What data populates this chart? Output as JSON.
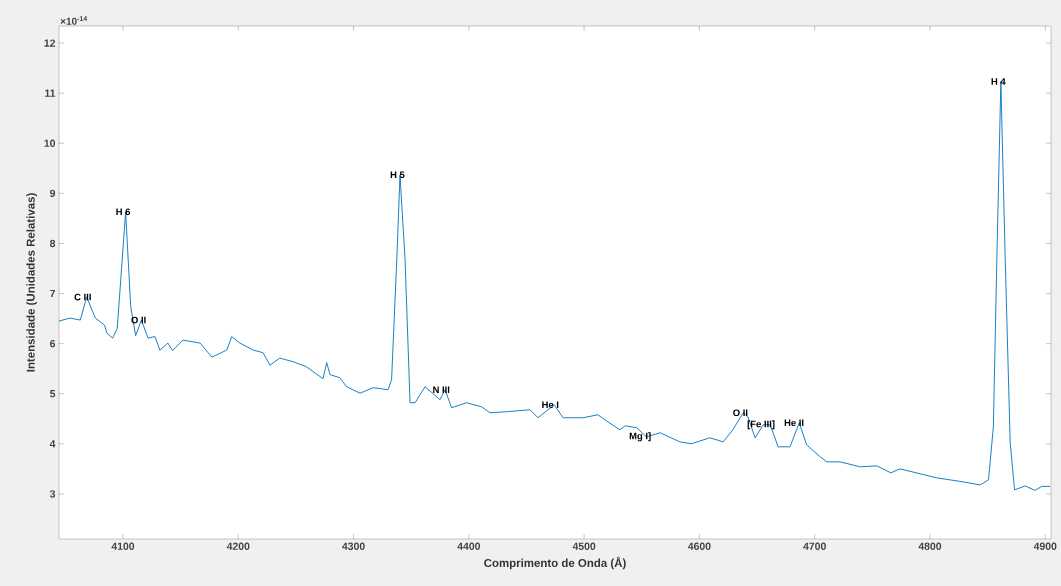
{
  "chart_data": {
    "type": "line",
    "xlabel": "Comprimento de Onda (Å)",
    "ylabel": "Intensidade (Unidades Relativas)",
    "xlim": [
      4044.5,
      4905
    ],
    "ylim": [
      2.1,
      12.34
    ],
    "xticks": [
      4100,
      4200,
      4300,
      4400,
      4500,
      4600,
      4700,
      4800,
      4900
    ],
    "yticks": [
      3,
      4,
      5,
      6,
      7,
      8,
      9,
      10,
      11,
      12
    ],
    "grid": false,
    "marker": "none",
    "line_style": "solid",
    "annotations": [
      "×10$^{-14}$",
      {
        "text": "C III",
        "x": 4068.5,
        "y": 6.93
      },
      {
        "text": "H 6",
        "x": 4102.3,
        "y": 8.63
      },
      {
        "text": "O II",
        "x": 4116,
        "y": 6.47
      },
      {
        "text": "H 5",
        "x": 4340.3,
        "y": 9.37
      },
      {
        "text": "N III",
        "x": 4379.4,
        "y": 5.08
      },
      {
        "text": "He I",
        "x": 4474,
        "y": 4.78
      },
      {
        "text": "Mg I]",
        "x": 4554,
        "y": 4.14
      },
      {
        "text": "O II",
        "x": 4638,
        "y": 4.62
      },
      {
        "text": "[Fe III]",
        "x": 4661.4,
        "y": 4.38
      },
      {
        "text": "He II",
        "x": 4686.6,
        "y": 4.42
      },
      {
        "text": "H 4",
        "x": 4861.5,
        "y": 11.23
      }
    ],
    "series": [
      {
        "color": "#0072bd",
        "x": [
          4044.5,
          4054,
          4063,
          4068.5,
          4076,
          4084,
          4086,
          4091,
          4095,
          4102.3,
          4106.7,
          4111,
          4116,
          4121.7,
          4127.8,
          4132,
          4139,
          4143,
          4152,
          4167,
          4177,
          4190,
          4194.3,
          4201.5,
          4213,
          4221.4,
          4227.5,
          4236,
          4247.5,
          4259,
          4273.5,
          4276.7,
          4279.6,
          4288,
          4294,
          4305.6,
          4317,
          4330,
          4333,
          4337.5,
          4340.3,
          4344.7,
          4349,
          4353.4,
          4362,
          4375,
          4379.4,
          4385,
          4398,
          4411,
          4418.4,
          4432.6,
          4453,
          4460,
          4474,
          4481.8,
          4499,
          4512,
          4518,
          4531,
          4535.6,
          4545.7,
          4554,
          4566,
          4583,
          4593,
          4609,
          4620.6,
          4629,
          4638,
          4642,
          4648.4,
          4655.3,
          4661.4,
          4668.3,
          4678.6,
          4686.6,
          4693,
          4704.8,
          4710.6,
          4722,
          4739.6,
          4754,
          4766,
          4774,
          4806,
          4826,
          4843.6,
          4850.8,
          4855,
          4858,
          4861.5,
          4865.3,
          4869.6,
          4873.4,
          4882.6,
          4891,
          4897,
          4904.3
        ],
        "values": [
          6.45,
          6.51,
          6.47,
          6.93,
          6.51,
          6.37,
          6.21,
          6.11,
          6.3,
          8.63,
          6.74,
          6.16,
          6.47,
          6.11,
          6.14,
          5.87,
          6.01,
          5.86,
          6.07,
          6.01,
          5.73,
          5.87,
          6.14,
          6.01,
          5.87,
          5.82,
          5.57,
          5.71,
          5.64,
          5.54,
          5.3,
          5.62,
          5.38,
          5.32,
          5.14,
          5.01,
          5.12,
          5.08,
          5.28,
          7.67,
          9.37,
          7.67,
          4.82,
          4.82,
          5.14,
          4.88,
          5.08,
          4.72,
          4.82,
          4.74,
          4.62,
          4.64,
          4.68,
          4.52,
          4.78,
          4.52,
          4.52,
          4.58,
          4.48,
          4.28,
          4.36,
          4.32,
          4.14,
          4.22,
          4.04,
          4.0,
          4.12,
          4.04,
          4.28,
          4.62,
          4.54,
          4.12,
          4.38,
          4.38,
          3.94,
          3.94,
          4.42,
          3.98,
          3.74,
          3.64,
          3.64,
          3.54,
          3.56,
          3.42,
          3.5,
          3.32,
          3.25,
          3.18,
          3.28,
          4.34,
          7.67,
          11.23,
          7.67,
          4.02,
          3.08,
          3.16,
          3.07,
          3.15,
          3.15
        ]
      }
    ]
  }
}
